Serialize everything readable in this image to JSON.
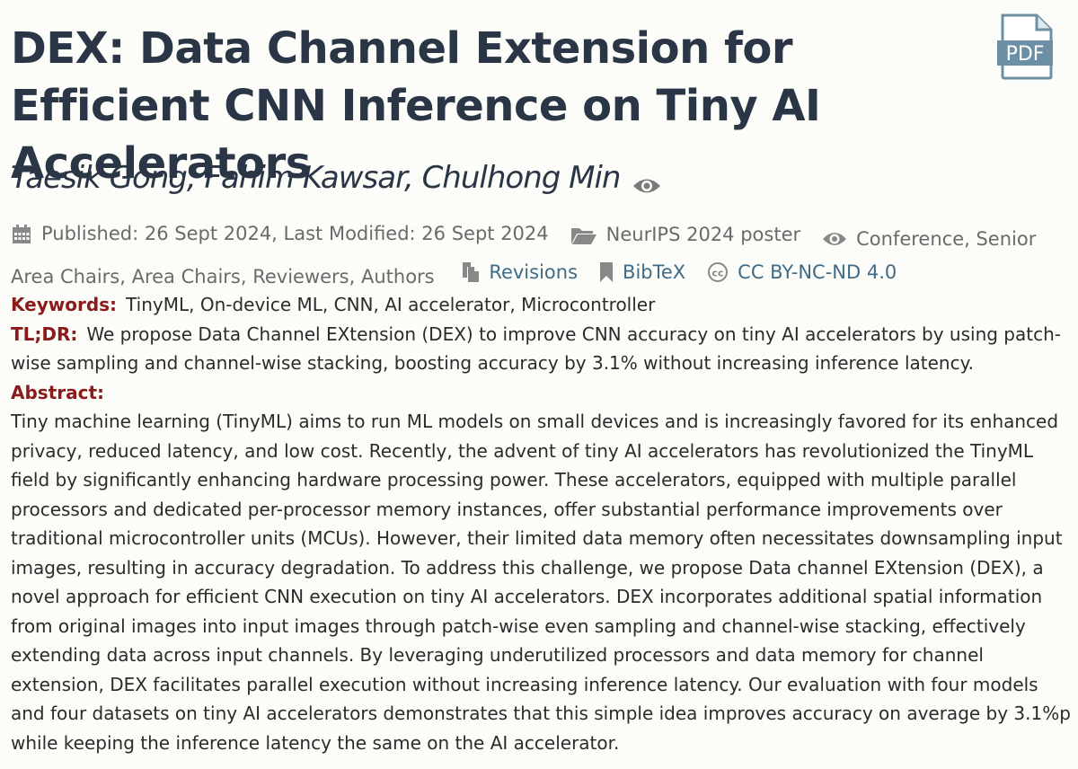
{
  "paper": {
    "title": "DEX: Data Channel Extension for Efficient CNN Inference on Tiny AI Accelerators",
    "authors": "Taesik Gong, Fahim Kawsar, Chulhong Min",
    "pdf_label": "PDF"
  },
  "meta": {
    "published": "Published: 26 Sept 2024, Last Modified: 26 Sept 2024",
    "venue": "NeurIPS 2024 poster",
    "readers": "Conference, Senior Area Chairs, Area Chairs, Reviewers, Authors",
    "revisions": "Revisions",
    "bibtex": "BibTeX",
    "license": "CC BY-NC-ND 4.0"
  },
  "fields": {
    "keywords_label": "Keywords:",
    "keywords": "TinyML, On-device ML, CNN, AI accelerator, Microcontroller",
    "tldr_label": "TL;DR:",
    "tldr": "We propose Data Channel EXtension (DEX) to improve CNN accuracy on tiny AI accelerators by using patch-wise sampling and channel-wise stacking, boosting accuracy by 3.1% without increasing inference latency.",
    "abstract_label": "Abstract:",
    "abstract": "Tiny machine learning (TinyML) aims to run ML models on small devices and is increasingly favored for its enhanced privacy, reduced latency, and low cost. Recently, the advent of tiny AI accelerators has revolutionized the TinyML field by significantly enhancing hardware processing power. These accelerators, equipped with multiple parallel processors and dedicated per-processor memory instances, offer substantial performance improvements over traditional microcontroller units (MCUs). However, their limited data memory often necessitates downsampling input images, resulting in accuracy degradation. To address this challenge, we propose Data channel EXtension (DEX), a novel approach for efficient CNN execution on tiny AI accelerators. DEX incorporates additional spatial information from original images into input images through patch-wise even sampling and channel-wise stacking, effectively extending data across input channels. By leveraging underutilized processors and data memory for channel extension, DEX facilitates parallel execution without increasing inference latency. Our evaluation with four models and four datasets on tiny AI accelerators demonstrates that this simple idea improves accuracy on average by 3.1%p while keeping the inference latency the same on the AI accelerator."
  },
  "colors": {
    "title": "#2a3545",
    "label": "#8b1a1a",
    "link": "#3f6b87",
    "meta": "#6a6a6a"
  }
}
